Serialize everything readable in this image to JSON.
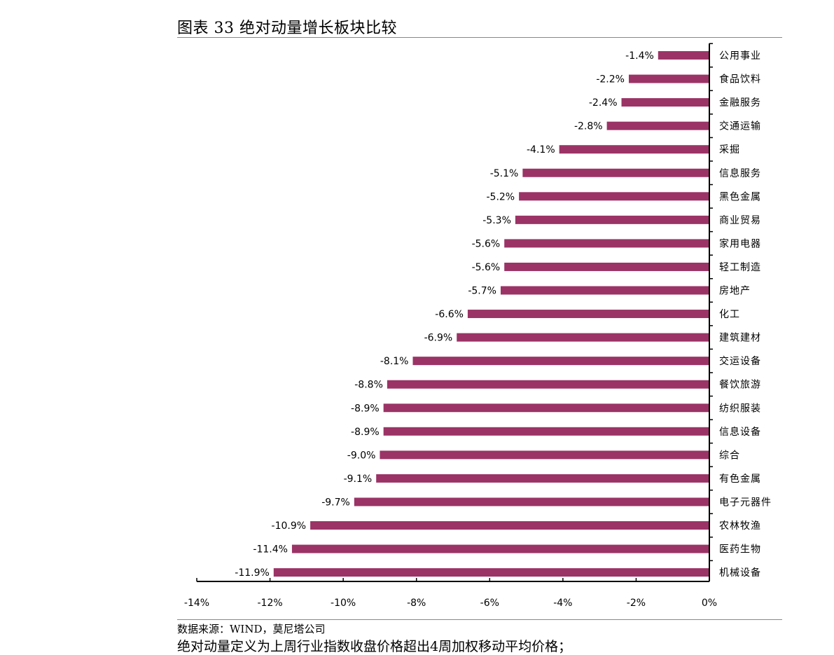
{
  "figure": {
    "title": "图表 33 绝对动量增长板块比较",
    "source": "数据来源：WIND，莫尼塔公司",
    "note": "绝对动量定义为上周行业指数收盘价格超出4周加权移动平均价格；"
  },
  "chart_data": {
    "type": "bar",
    "orientation": "horizontal",
    "categories": [
      "公用事业",
      "食品饮料",
      "金融服务",
      "交通运输",
      "采掘",
      "信息服务",
      "黑色金属",
      "商业贸易",
      "家用电器",
      "轻工制造",
      "房地产",
      "化工",
      "建筑建材",
      "交运设备",
      "餐饮旅游",
      "纺织服装",
      "信息设备",
      "综合",
      "有色金属",
      "电子元器件",
      "农林牧渔",
      "医药生物",
      "机械设备"
    ],
    "values": [
      -1.4,
      -2.2,
      -2.4,
      -2.8,
      -4.1,
      -5.1,
      -5.2,
      -5.3,
      -5.6,
      -5.6,
      -5.7,
      -6.6,
      -6.9,
      -8.1,
      -8.8,
      -8.9,
      -8.9,
      -9.0,
      -9.1,
      -9.7,
      -10.9,
      -11.4,
      -11.9
    ],
    "value_labels": [
      "-1.4%",
      "-2.2%",
      "-2.4%",
      "-2.8%",
      "-4.1%",
      "-5.1%",
      "-5.2%",
      "-5.3%",
      "-5.6%",
      "-5.6%",
      "-5.7%",
      "-6.6%",
      "-6.9%",
      "-8.1%",
      "-8.8%",
      "-8.9%",
      "-8.9%",
      "-9.0%",
      "-9.1%",
      "-9.7%",
      "-10.9%",
      "-11.4%",
      "-11.9%"
    ],
    "xlim": [
      -14,
      0
    ],
    "xticks": [
      -14,
      -12,
      -10,
      -8,
      -6,
      -4,
      -2,
      0
    ],
    "xtick_labels": [
      "-14%",
      "-12%",
      "-10%",
      "-8%",
      "-6%",
      "-4%",
      "-2%",
      "0%"
    ],
    "category_axis_side": "right",
    "grid": false,
    "legend": "none",
    "bar_color": "#9b3366"
  }
}
